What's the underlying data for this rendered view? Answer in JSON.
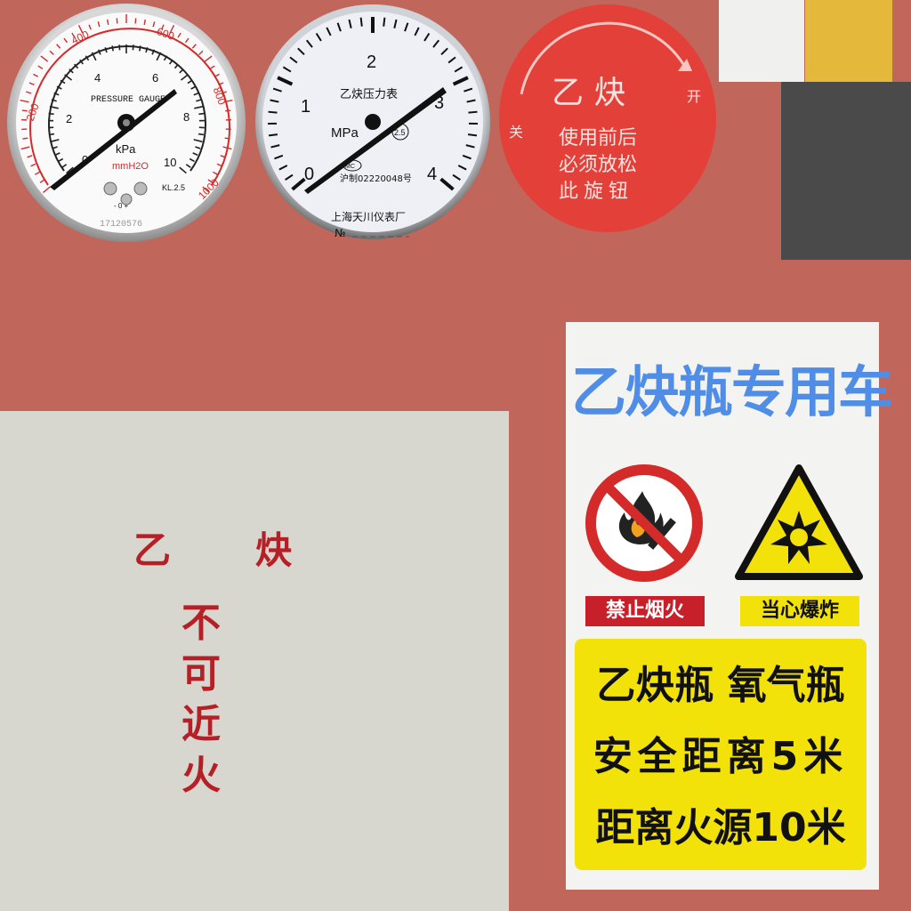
{
  "swatches": {
    "white": "#f0f0ee",
    "yellow": "#e4b83a",
    "gray": "#4a4a4a",
    "background": "#c0665a"
  },
  "gauge_kpa": {
    "title": "PRESSURE GAUGE",
    "unit_primary": "kPa",
    "unit_secondary": "mmH2O",
    "inner_scale": [
      "0",
      "2",
      "4",
      "6",
      "8",
      "10"
    ],
    "outer_scale": [
      "200",
      "400",
      "600",
      "800",
      "1000"
    ],
    "class_label": "KL.2.5",
    "serial": "17120576",
    "zero_adjust": "- 0 +"
  },
  "gauge_mpa": {
    "title": "乙炔压力表",
    "unit": "MPa",
    "class_badge": "2.5",
    "mc_badge": "MC",
    "license": "沪制02220048号",
    "scale": [
      "0",
      "1",
      "2",
      "3",
      "4"
    ],
    "maker": "上海天川仪表厂",
    "number_prefix": "№"
  },
  "red_sticker": {
    "title": "乙 炔",
    "line1": "使用前后",
    "line2": "必须放松",
    "line3": "此旋钮",
    "close_label": "关",
    "open_label": "开"
  },
  "panel": {
    "title": "乙 炔",
    "vertical_text": "不可近火"
  },
  "sign": {
    "title": "乙炔瓶专用车",
    "no_fire_label": "禁止烟火",
    "explosion_label": "当心爆炸",
    "line1": "乙炔瓶  氧气瓶",
    "line2": "安全距离5米",
    "line3": "距离火源10米"
  }
}
